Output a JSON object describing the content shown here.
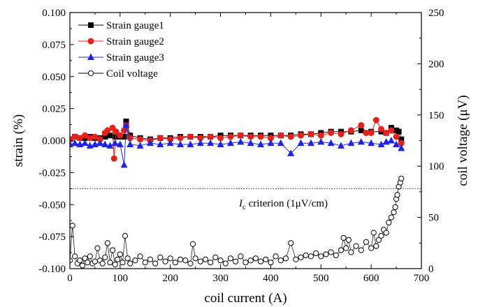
{
  "chart_data": {
    "type": "scatter",
    "xlabel": "coil current (A)",
    "ylabel": "strain (%)",
    "y2label": "coil voltage (μV)",
    "xlim": [
      0,
      700
    ],
    "ylim": [
      -0.1,
      0.1
    ],
    "y2lim": [
      0,
      250
    ],
    "xticks": [
      "0",
      "100",
      "200",
      "300",
      "400",
      "500",
      "600",
      "700"
    ],
    "yticks": [
      "-0.100",
      "-0.075",
      "-0.050",
      "-0.025",
      "0.000",
      "0.025",
      "0.050",
      "0.075",
      "0.100"
    ],
    "y2ticks": [
      "0",
      "50",
      "100",
      "150",
      "200",
      "250"
    ],
    "grid": false,
    "legend_position": "top-left",
    "criterion": {
      "label_italic": "I",
      "label_sub": "c",
      "label_rest": " criterion (1μV/cm)",
      "y2_value": 78
    },
    "series": [
      {
        "name": "Strain gauge1",
        "axis": "left",
        "marker": "square",
        "color": "#000000",
        "x": [
          0,
          10,
          20,
          30,
          40,
          50,
          60,
          70,
          80,
          90,
          100,
          108,
          112,
          120,
          140,
          160,
          180,
          200,
          220,
          240,
          260,
          280,
          300,
          320,
          340,
          360,
          380,
          400,
          420,
          440,
          460,
          480,
          500,
          520,
          540,
          560,
          580,
          600,
          620,
          630,
          640,
          650,
          655,
          660
        ],
        "y": [
          0.001,
          0.003,
          0.002,
          0.002,
          0.003,
          0.002,
          0.002,
          0.003,
          0.004,
          0.003,
          0.003,
          0.003,
          0.015,
          0.004,
          0.002,
          0.001,
          0.002,
          0.002,
          0.003,
          0.003,
          0.003,
          0.003,
          0.004,
          0.004,
          0.004,
          0.004,
          0.004,
          0.004,
          0.004,
          0.004,
          0.005,
          0.005,
          0.006,
          0.007,
          0.007,
          0.007,
          0.008,
          0.007,
          0.007,
          0.006,
          0.01,
          0.008,
          0.007,
          0.001
        ]
      },
      {
        "name": "Strain gauge2",
        "axis": "left",
        "marker": "circle",
        "color": "#e8201c",
        "x": [
          0,
          10,
          20,
          30,
          40,
          50,
          60,
          70,
          75,
          85,
          88,
          92,
          100,
          108,
          112,
          120,
          140,
          160,
          180,
          200,
          220,
          240,
          260,
          280,
          300,
          320,
          340,
          360,
          380,
          400,
          420,
          440,
          460,
          480,
          500,
          520,
          540,
          560,
          580,
          590,
          600,
          610,
          620,
          630,
          640,
          650,
          660
        ],
        "y": [
          0.001,
          0.003,
          0.002,
          0.004,
          0.002,
          0.003,
          0.001,
          0.006,
          0.008,
          0.01,
          -0.014,
          0.007,
          0.004,
          0.008,
          0.012,
          0.002,
          0.001,
          0.0,
          0.002,
          0.001,
          0.002,
          0.003,
          0.002,
          0.003,
          0.002,
          0.003,
          0.004,
          0.003,
          0.003,
          0.002,
          0.004,
          0.003,
          0.004,
          0.005,
          0.004,
          0.006,
          0.005,
          0.008,
          0.012,
          0.006,
          0.006,
          0.016,
          0.009,
          0.006,
          0.008,
          0.003,
          -0.002
        ]
      },
      {
        "name": "Strain gauge3",
        "axis": "left",
        "marker": "triangle",
        "color": "#1f24e0",
        "x": [
          0,
          10,
          20,
          30,
          40,
          50,
          60,
          70,
          80,
          90,
          100,
          108,
          112,
          120,
          140,
          160,
          180,
          200,
          220,
          240,
          260,
          280,
          300,
          320,
          340,
          360,
          380,
          400,
          420,
          440,
          460,
          480,
          500,
          520,
          540,
          560,
          580,
          600,
          620,
          630,
          640,
          650,
          660
        ],
        "y": [
          -0.003,
          -0.002,
          -0.003,
          -0.002,
          -0.004,
          -0.003,
          -0.002,
          -0.003,
          -0.004,
          -0.002,
          -0.003,
          -0.019,
          0.012,
          -0.003,
          -0.004,
          -0.002,
          -0.003,
          -0.002,
          -0.003,
          -0.003,
          -0.002,
          -0.002,
          -0.003,
          -0.002,
          -0.001,
          -0.002,
          -0.003,
          -0.002,
          -0.002,
          -0.01,
          -0.002,
          -0.002,
          -0.001,
          -0.002,
          -0.004,
          -0.002,
          -0.001,
          -0.002,
          -0.003,
          -0.001,
          0.0,
          -0.003,
          -0.006
        ]
      },
      {
        "name": "Coil voltage",
        "axis": "right",
        "marker": "open-circle",
        "color": "#000000",
        "x": [
          0,
          5,
          10,
          15,
          20,
          25,
          30,
          35,
          40,
          45,
          50,
          55,
          60,
          65,
          70,
          75,
          80,
          85,
          90,
          95,
          100,
          105,
          110,
          115,
          120,
          130,
          140,
          150,
          160,
          170,
          180,
          190,
          200,
          210,
          220,
          230,
          240,
          245,
          250,
          260,
          270,
          280,
          290,
          300,
          310,
          320,
          330,
          340,
          350,
          360,
          370,
          380,
          390,
          400,
          410,
          420,
          430,
          440,
          450,
          460,
          470,
          480,
          490,
          500,
          510,
          520,
          530,
          540,
          545,
          550,
          555,
          560,
          570,
          580,
          590,
          600,
          605,
          610,
          615,
          620,
          625,
          630,
          635,
          640,
          645,
          648,
          650,
          652,
          655,
          658,
          660
        ],
        "y": [
          8,
          42,
          12,
          5,
          8,
          3,
          10,
          6,
          12,
          5,
          7,
          20,
          8,
          5,
          11,
          25,
          6,
          18,
          4,
          9,
          14,
          6,
          32,
          10,
          5,
          8,
          12,
          6,
          9,
          5,
          11,
          7,
          10,
          6,
          9,
          8,
          5,
          24,
          10,
          7,
          9,
          6,
          11,
          8,
          5,
          10,
          7,
          12,
          6,
          8,
          10,
          7,
          9,
          6,
          12,
          8,
          10,
          25,
          9,
          11,
          13,
          12,
          15,
          12,
          14,
          16,
          13,
          18,
          30,
          20,
          28,
          16,
          22,
          18,
          26,
          20,
          35,
          22,
          28,
          32,
          38,
          35,
          45,
          50,
          55,
          60,
          68,
          72,
          80,
          84,
          88
        ]
      }
    ]
  }
}
